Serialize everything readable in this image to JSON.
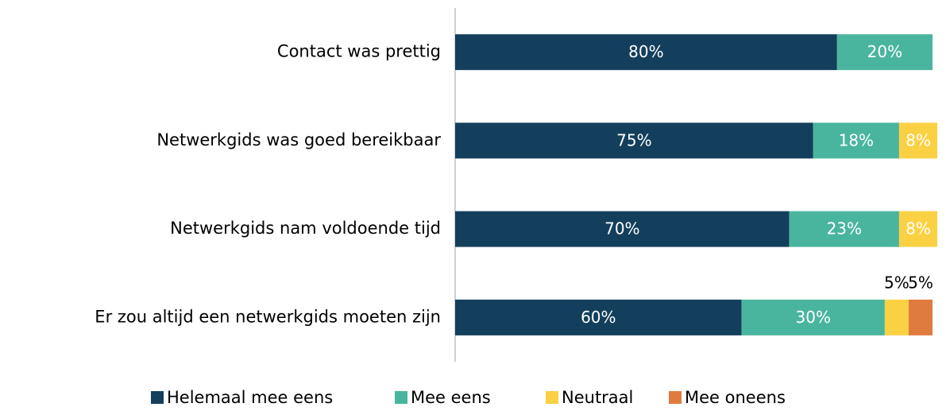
{
  "chart_data": {
    "type": "stacked-bar-horizontal",
    "categories": [
      "Contact was prettig",
      "Netwerkgids was goed bereikbaar",
      "Netwerkgids nam voldoende tijd",
      "Er zou altijd een netwerkgids moeten zijn"
    ],
    "series": [
      {
        "name": "Helemaal mee eens",
        "color": "#133f5c",
        "values": [
          80,
          75,
          70,
          60
        ],
        "value_labels": [
          "80%",
          "75%",
          "70%",
          "60%"
        ]
      },
      {
        "name": "Mee eens",
        "color": "#4ab59f",
        "values": [
          20,
          18,
          23,
          30
        ],
        "value_labels": [
          "20%",
          "18%",
          "23%",
          "30%"
        ]
      },
      {
        "name": "Neutraal",
        "color": "#fbd144",
        "values": [
          0,
          8,
          8,
          5
        ],
        "value_labels": [
          null,
          "8%",
          "8%",
          "5%"
        ]
      },
      {
        "name": "Mee oneens",
        "color": "#e07b3f",
        "values": [
          0,
          0,
          0,
          5
        ],
        "value_labels": [
          null,
          null,
          null,
          "5%"
        ]
      }
    ],
    "xlim": [
      0,
      100
    ],
    "legend": "bottom"
  }
}
